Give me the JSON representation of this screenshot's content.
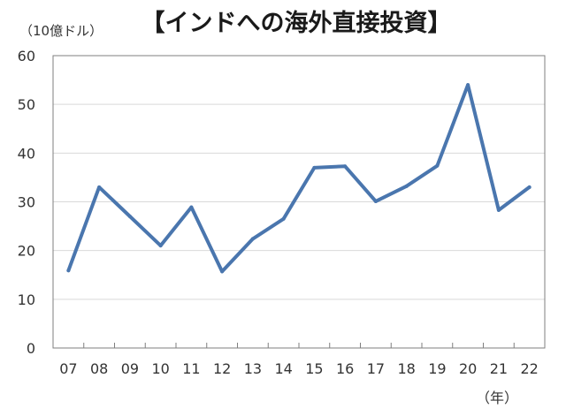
{
  "chart_data": {
    "type": "line",
    "title": "【インドへの海外直接投資】",
    "ylabel": "（10億ドル）",
    "xlabel": "（年）",
    "x": [
      "07",
      "08",
      "09",
      "10",
      "11",
      "12",
      "13",
      "14",
      "15",
      "16",
      "17",
      "18",
      "19",
      "20",
      "21",
      "22"
    ],
    "series": [
      {
        "values": [
          15.9,
          33.0,
          27.0,
          21.0,
          28.9,
          15.7,
          22.4,
          26.5,
          37.0,
          37.3,
          30.1,
          33.2,
          37.4,
          54.0,
          28.3,
          33.0
        ]
      }
    ],
    "ylim": [
      0,
      60
    ],
    "yticks": [
      0,
      10,
      20,
      30,
      40,
      50,
      60
    ],
    "grid": true,
    "line_color": "#4a76ae"
  }
}
